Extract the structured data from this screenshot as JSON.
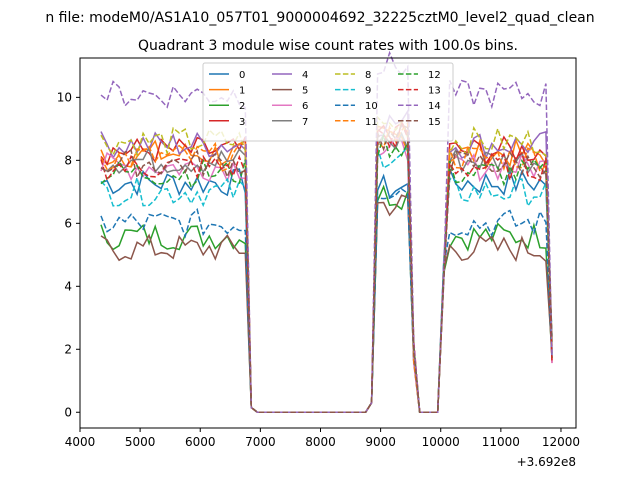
{
  "suptitle": "n file: modeM0/AS1A10_057T01_9000004692_32225cztM0_level2_quad_clean",
  "title": "Quadrant 3 module wise count rates with 100.0s bins.",
  "chart_data": {
    "type": "line",
    "title": "Quadrant 3 module wise count rates with 100.0s bins.",
    "xlabel": "",
    "ylabel": "",
    "x_offset_label": "+3.692e8",
    "xlim": [
      4000,
      12250
    ],
    "ylim": [
      -0.5,
      11.25
    ],
    "xticks": [
      4000,
      5000,
      6000,
      7000,
      8000,
      9000,
      10000,
      11000,
      12000
    ],
    "yticks": [
      0,
      2,
      4,
      6,
      8,
      10
    ],
    "grid": false,
    "legend": {
      "placement": "top-center",
      "columns": 4
    },
    "bins": {
      "segments": [
        [
          4350,
          6750
        ],
        [
          6850,
          8850
        ],
        [
          8900,
          9550
        ],
        [
          9600,
          10050
        ],
        [
          10100,
          11850
        ]
      ]
    },
    "series": [
      {
        "name": "0",
        "color": "#1f77b4",
        "dash": "solid",
        "mean": 7.3,
        "gap_level": 6.3
      },
      {
        "name": "1",
        "color": "#ff7f0e",
        "dash": "solid",
        "mean": 8.2,
        "gap_level": 7.9
      },
      {
        "name": "2",
        "color": "#2ca02c",
        "dash": "solid",
        "mean": 5.6,
        "gap_level": 6.1
      },
      {
        "name": "3",
        "color": "#d62728",
        "dash": "solid",
        "mean": 8.3,
        "gap_level": 8.0
      },
      {
        "name": "4",
        "color": "#9467bd",
        "dash": "solid",
        "mean": 8.5,
        "gap_level": 8.4
      },
      {
        "name": "5",
        "color": "#8c564b",
        "dash": "solid",
        "mean": 5.2,
        "gap_level": 5.8
      },
      {
        "name": "6",
        "color": "#e377c2",
        "dash": "solid",
        "mean": 7.8,
        "gap_level": 7.5
      },
      {
        "name": "7",
        "color": "#7f7f7f",
        "dash": "solid",
        "mean": 8.0,
        "gap_level": 7.8
      },
      {
        "name": "8",
        "color": "#bcbd22",
        "dash": "dashed",
        "mean": 8.6,
        "gap_level": 8.3
      },
      {
        "name": "9",
        "color": "#17becf",
        "dash": "dashed",
        "mean": 7.0,
        "gap_level": 7.4
      },
      {
        "name": "10",
        "color": "#1f77b4",
        "dash": "dashed",
        "mean": 6.0,
        "gap_level": 6.3
      },
      {
        "name": "11",
        "color": "#ff7f0e",
        "dash": "dashed",
        "mean": 8.1,
        "gap_level": 8.0
      },
      {
        "name": "12",
        "color": "#2ca02c",
        "dash": "dashed",
        "mean": 7.6,
        "gap_level": 7.7
      },
      {
        "name": "13",
        "color": "#d62728",
        "dash": "dashed",
        "mean": 7.8,
        "gap_level": 8.0
      },
      {
        "name": "14",
        "color": "#9467bd",
        "dash": "dashed",
        "mean": 10.1,
        "gap_level": 10.2
      },
      {
        "name": "15",
        "color": "#8c564b",
        "dash": "dashed",
        "mean": 7.9,
        "gap_level": 7.9
      }
    ]
  }
}
